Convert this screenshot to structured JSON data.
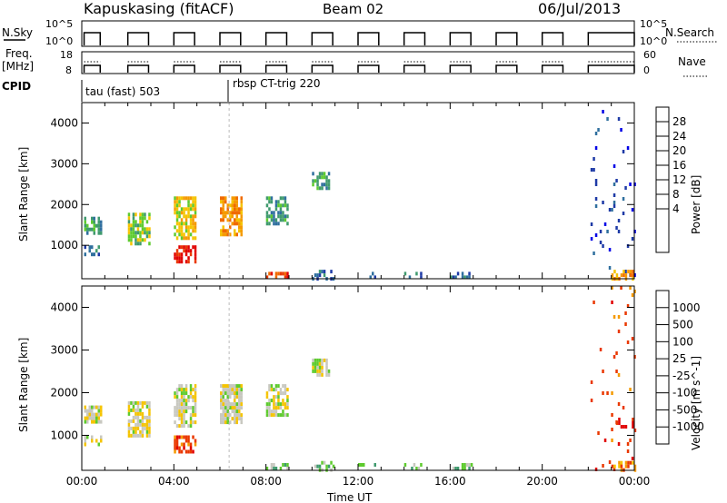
{
  "header": {
    "station": "Kapuskasing (fitACF)",
    "beam": "Beam 02",
    "date": "06/Jul/2013"
  },
  "strip1": {
    "left_label": "N.Sky",
    "left_ticks": [
      "10^5",
      "10^0"
    ],
    "right_ticks": [
      "10^5",
      "10^0"
    ],
    "right_label": "N.Search"
  },
  "strip2": {
    "left_label_1": "Freq.",
    "left_label_2": "[MHz]",
    "left_ticks": [
      "18",
      "8"
    ],
    "right_ticks": [
      "60",
      "0"
    ],
    "right_label": "Nave"
  },
  "cpid": {
    "label": "CPID",
    "program_1": "tau (fast) 503",
    "program_2": "rbsp CT-trig 220"
  },
  "chart_data": [
    {
      "type": "heatmap",
      "panel": "power",
      "ylabel": "Slant Range [km]",
      "yticks": [
        "4000",
        "3000",
        "2000",
        "1000"
      ],
      "ylim": [
        180,
        4500
      ],
      "xlim_hours": [
        0,
        24
      ],
      "colorbar_label": "Power [dB]",
      "colorbar_ticks": [
        "28",
        "24",
        "20",
        "16",
        "12",
        "8",
        "4"
      ],
      "colorbar_colors": [
        "#0000e6",
        "#1e3aa6",
        "#2f6f9e",
        "#3f9a6e",
        "#5ecb2e",
        "#f5c400",
        "#f59a00",
        "#f06a00",
        "#ea3800",
        "#e10000"
      ],
      "blocks": [
        {
          "t0": 0.1,
          "t1": 0.8,
          "r0": 1300,
          "r1": 1700,
          "color_index": 3,
          "density": 0.7
        },
        {
          "t0": 0.1,
          "t1": 0.8,
          "r0": 800,
          "r1": 1000,
          "color_index": 2,
          "density": 0.5
        },
        {
          "t0": 2.0,
          "t1": 2.9,
          "r0": 1000,
          "r1": 1800,
          "color_index": 4,
          "density": 0.7
        },
        {
          "t0": 4.0,
          "t1": 4.9,
          "r0": 600,
          "r1": 1000,
          "color_index": 9,
          "density": 0.7
        },
        {
          "t0": 4.0,
          "t1": 4.9,
          "r0": 1200,
          "r1": 2200,
          "color_index": 5,
          "density": 0.7
        },
        {
          "t0": 6.0,
          "t1": 6.9,
          "r0": 1300,
          "r1": 2200,
          "color_index": 6,
          "density": 0.7
        },
        {
          "t0": 8.0,
          "t1": 8.9,
          "r0": 1500,
          "r1": 2200,
          "color_index": 3,
          "density": 0.6
        },
        {
          "t0": 8.0,
          "t1": 8.9,
          "r0": 180,
          "r1": 350,
          "color_index": 8,
          "density": 0.5
        },
        {
          "t0": 10.0,
          "t1": 10.7,
          "r0": 2400,
          "r1": 2800,
          "color_index": 3,
          "density": 0.7
        },
        {
          "t0": 10.0,
          "t1": 10.9,
          "r0": 180,
          "r1": 400,
          "color_index": 2,
          "density": 0.5
        },
        {
          "t0": 12.0,
          "t1": 12.8,
          "r0": 180,
          "r1": 350,
          "color_index": 2,
          "density": 0.3
        },
        {
          "t0": 14.0,
          "t1": 14.8,
          "r0": 180,
          "r1": 350,
          "color_index": 2,
          "density": 0.3
        },
        {
          "t0": 16.0,
          "t1": 16.9,
          "r0": 180,
          "r1": 350,
          "color_index": 2,
          "density": 0.4
        },
        {
          "t0": 22.0,
          "t1": 24.0,
          "r0": 180,
          "r1": 4500,
          "color_index": 1,
          "density": 0.04
        },
        {
          "t0": 23.0,
          "t1": 24.0,
          "r0": 180,
          "r1": 400,
          "color_index": 6,
          "density": 0.6
        }
      ]
    },
    {
      "type": "heatmap",
      "panel": "velocity",
      "ylabel": "Slant Range [km]",
      "yticks": [
        "4000",
        "3000",
        "2000",
        "1000"
      ],
      "ylim": [
        180,
        4500
      ],
      "xlim_hours": [
        0,
        24
      ],
      "xticks": [
        "00:00",
        "04:00",
        "08:00",
        "12:00",
        "16:00",
        "20:00",
        "00:00"
      ],
      "xlabel": "Time UT",
      "colorbar_label": "Velocity [m s^-1]",
      "colorbar_ticks": [
        "1000",
        "500",
        "100",
        "25",
        "-25",
        "-100",
        "-500",
        "-1000"
      ],
      "colorbar_colors": [
        "#1e3aa6",
        "#2f6f9e",
        "#3f9a6e",
        "#5ecb2e",
        "#c8c8c0",
        "#f5c400",
        "#f59a00",
        "#ea3800",
        "#e10000"
      ],
      "blocks": [
        {
          "t0": 0.1,
          "t1": 0.8,
          "r0": 1300,
          "r1": 1700,
          "color_index": 4,
          "density": 0.8
        },
        {
          "t0": 0.1,
          "t1": 0.8,
          "r0": 800,
          "r1": 1000,
          "color_index": 4,
          "density": 0.5
        },
        {
          "t0": 2.0,
          "t1": 2.9,
          "r0": 1000,
          "r1": 1800,
          "color_index": 4,
          "density": 0.8
        },
        {
          "t0": 4.0,
          "t1": 4.9,
          "r0": 600,
          "r1": 1000,
          "color_index": 7,
          "density": 0.7
        },
        {
          "t0": 4.0,
          "t1": 4.9,
          "r0": 1200,
          "r1": 2200,
          "color_index": 4,
          "density": 0.8
        },
        {
          "t0": 6.0,
          "t1": 6.9,
          "r0": 1300,
          "r1": 2200,
          "color_index": 4,
          "density": 0.8
        },
        {
          "t0": 8.0,
          "t1": 8.9,
          "r0": 1500,
          "r1": 2200,
          "color_index": 4,
          "density": 0.7
        },
        {
          "t0": 8.0,
          "t1": 8.9,
          "r0": 180,
          "r1": 350,
          "color_index": 3,
          "density": 0.5
        },
        {
          "t0": 10.0,
          "t1": 10.7,
          "r0": 2400,
          "r1": 2800,
          "color_index": 4,
          "density": 0.7
        },
        {
          "t0": 10.0,
          "t1": 10.9,
          "r0": 180,
          "r1": 400,
          "color_index": 3,
          "density": 0.5
        },
        {
          "t0": 12.0,
          "t1": 12.8,
          "r0": 180,
          "r1": 350,
          "color_index": 3,
          "density": 0.3
        },
        {
          "t0": 14.0,
          "t1": 14.8,
          "r0": 180,
          "r1": 350,
          "color_index": 3,
          "density": 0.3
        },
        {
          "t0": 16.0,
          "t1": 16.9,
          "r0": 180,
          "r1": 350,
          "color_index": 3,
          "density": 0.4
        },
        {
          "t0": 22.0,
          "t1": 24.0,
          "r0": 180,
          "r1": 4500,
          "color_index": 7,
          "density": 0.04
        },
        {
          "t0": 23.2,
          "t1": 24.0,
          "r0": 1100,
          "r1": 1500,
          "color_index": 8,
          "density": 0.3
        },
        {
          "t0": 23.0,
          "t1": 24.0,
          "r0": 180,
          "r1": 400,
          "color_index": 6,
          "density": 0.6
        }
      ]
    }
  ],
  "scan_periods_hours": [
    [
      0.1,
      0.8
    ],
    [
      2.0,
      2.9
    ],
    [
      4.0,
      4.9
    ],
    [
      6.0,
      6.9
    ],
    [
      8.0,
      8.9
    ],
    [
      10.0,
      10.9
    ],
    [
      12.0,
      12.9
    ],
    [
      14.0,
      14.9
    ],
    [
      16.0,
      16.9
    ],
    [
      18.0,
      18.9
    ],
    [
      20.0,
      20.9
    ],
    [
      22.0,
      24.0
    ]
  ],
  "cpid_change_hour": 6.4
}
